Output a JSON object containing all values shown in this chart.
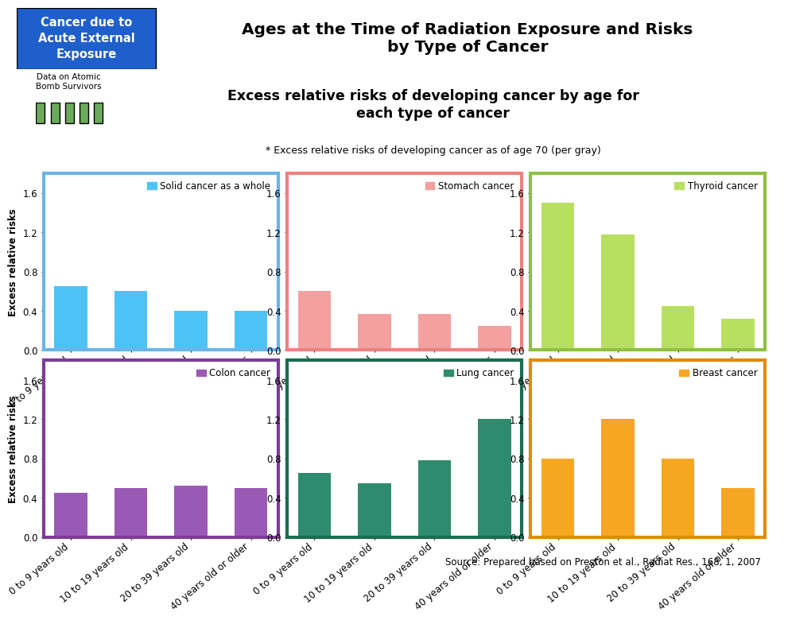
{
  "title_box_text": "Cancer due to\nAcute External\nExposure",
  "title_main": "Ages at the Time of Radiation Exposure and Risks\nby Type of Cancer",
  "subtitle": "Excess relative risks of developing cancer by age for\neach type of cancer",
  "footnote": "* Excess relative risks of developing cancer as of age 70 (per gray)",
  "source": "Source: Prepared based on Preston et al., Radiat Res., 168, 1, 2007",
  "header_bg": "#cce8f4",
  "title_box_bg": "#1e5fcc",
  "categories": [
    "0 to 9 years old",
    "10 to 19 years old",
    "20 to 39 years old",
    "40 years old or older"
  ],
  "charts": [
    {
      "label": "Solid cancer as a whole",
      "values": [
        0.65,
        0.6,
        0.4,
        0.4
      ],
      "color": "#4dc3f5",
      "border_color": "#6ab4e8"
    },
    {
      "label": "Stomach cancer",
      "values": [
        0.6,
        0.37,
        0.37,
        0.25
      ],
      "color": "#f4a0a0",
      "border_color": "#f08080"
    },
    {
      "label": "Thyroid cancer",
      "values": [
        1.5,
        1.18,
        0.45,
        0.32
      ],
      "color": "#b8e060",
      "border_color": "#90c040"
    },
    {
      "label": "Colon cancer",
      "values": [
        0.45,
        0.5,
        0.52,
        0.5
      ],
      "color": "#9b59b6",
      "border_color": "#7d3c98"
    },
    {
      "label": "Lung cancer",
      "values": [
        0.65,
        0.55,
        0.78,
        1.2
      ],
      "color": "#2e8b6e",
      "border_color": "#1a6e50"
    },
    {
      "label": "Breast cancer",
      "values": [
        0.8,
        1.2,
        0.8,
        0.5
      ],
      "color": "#f5a623",
      "border_color": "#e08c00"
    }
  ],
  "border_colors": [
    "#6ab4e8",
    "#f08080",
    "#90c040",
    "#7d3c98",
    "#1a6e50",
    "#e08c00"
  ],
  "ylim": [
    0,
    1.8
  ],
  "yticks": [
    0.0,
    0.4,
    0.8,
    1.2,
    1.6
  ],
  "ylabel": "Excess relative risks"
}
